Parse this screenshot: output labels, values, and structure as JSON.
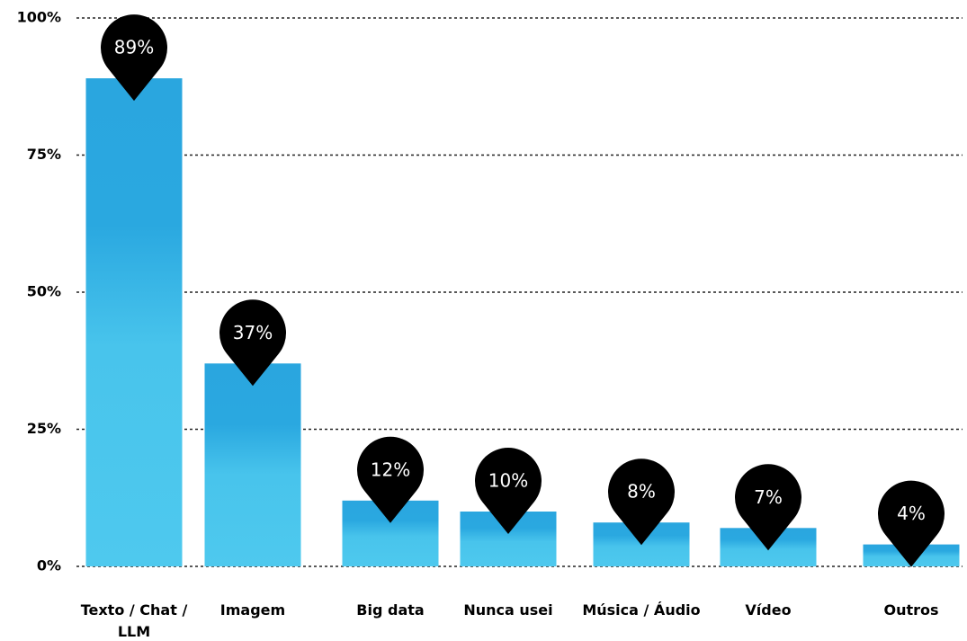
{
  "chart_data": {
    "type": "bar",
    "categories": [
      "Texto / Chat / LLM",
      "Imagem",
      "Big data",
      "Nunca usei",
      "Música / Áudio",
      "Vídeo",
      "Outros"
    ],
    "values": [
      89,
      37,
      12,
      10,
      8,
      7,
      4
    ],
    "value_labels": [
      "89%",
      "37%",
      "12%",
      "10%",
      "8%",
      "7%",
      "4%"
    ],
    "color": "#3bb8e8",
    "ylim": [
      0,
      100
    ],
    "yticks": [
      {
        "value": 0,
        "label": "0%"
      },
      {
        "value": 25,
        "label": "25%"
      },
      {
        "value": 50,
        "label": "50%"
      },
      {
        "value": 75,
        "label": "75%"
      },
      {
        "value": 100,
        "label": "100%"
      }
    ],
    "grid": true
  }
}
